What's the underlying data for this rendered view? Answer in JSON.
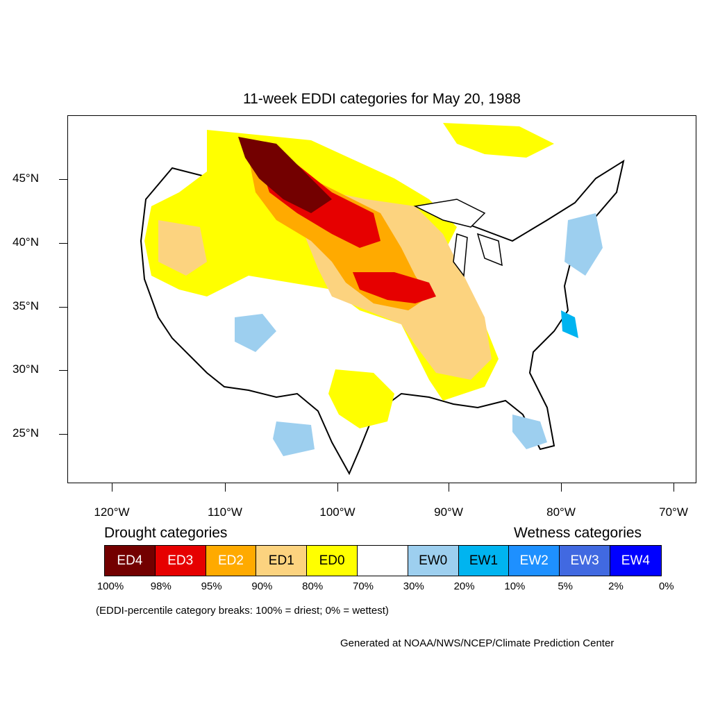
{
  "title": "11-week EDDI categories for May 20, 1988",
  "lat_labels": [
    "45°N",
    "40°N",
    "35°N",
    "30°N",
    "25°N"
  ],
  "lon_labels": [
    "120°W",
    "110°W",
    "100°W",
    "90°W",
    "80°W",
    "70°W"
  ],
  "drought_heading": "Drought categories",
  "wetness_heading": "Wetness categories",
  "legend": [
    {
      "label": "ED4",
      "color": "#730000",
      "text_color": "#ffffff"
    },
    {
      "label": "ED3",
      "color": "#e60000",
      "text_color": "#ffffff"
    },
    {
      "label": "ED2",
      "color": "#ffaa00",
      "text_color": "#ffffff"
    },
    {
      "label": "ED1",
      "color": "#fcd37f",
      "text_color": "#000000"
    },
    {
      "label": "ED0",
      "color": "#ffff00",
      "text_color": "#000000"
    },
    {
      "label": "",
      "color": "#ffffff",
      "text_color": "#000000"
    },
    {
      "label": "EW0",
      "color": "#9dcfef",
      "text_color": "#000000"
    },
    {
      "label": "EW1",
      "color": "#00b4f0",
      "text_color": "#000000"
    },
    {
      "label": "EW2",
      "color": "#1e90ff",
      "text_color": "#ffffff"
    },
    {
      "label": "EW3",
      "color": "#4169e1",
      "text_color": "#ffffff"
    },
    {
      "label": "EW4",
      "color": "#0000ff",
      "text_color": "#ffffff"
    }
  ],
  "percent_labels": [
    "100%",
    "98%",
    "95%",
    "90%",
    "80%",
    "70%",
    "30%",
    "20%",
    "10%",
    "5%",
    "2%",
    "0%"
  ],
  "note": "(EDDI-percentile category breaks: 100% = driest; 0% = wettest)",
  "credit": "Generated at NOAA/NWS/NCEP/Climate Prediction Center"
}
